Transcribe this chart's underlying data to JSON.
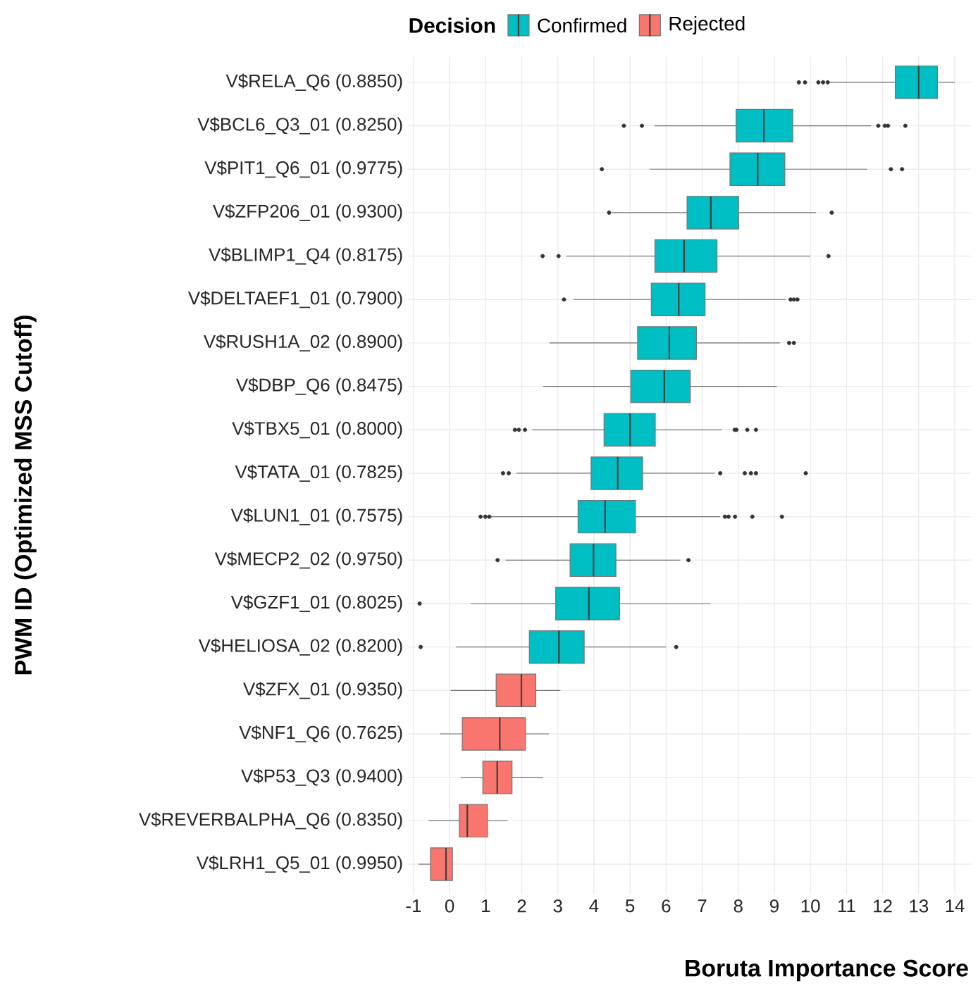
{
  "chart_data": {
    "type": "box",
    "orientation": "horizontal",
    "xlabel": "Boruta Importance Score",
    "ylabel": "PWM ID (Optimized MSS Cutoff)",
    "legend_title": "Decision",
    "legend": "top",
    "grid": true,
    "marker": "circle",
    "xlim": [
      -1.15,
      14.45
    ],
    "xticks": [
      -1,
      0,
      1,
      2,
      3,
      4,
      5,
      6,
      7,
      8,
      9,
      10,
      11,
      12,
      13,
      14
    ],
    "categories": [
      "V$RELA_Q6 (0.8850)",
      "V$BCL6_Q3_01 (0.8250)",
      "V$PIT1_Q6_01 (0.9775)",
      "V$ZFP206_01 (0.9300)",
      "V$BLIMP1_Q4 (0.8175)",
      "V$DELTAEF1_01 (0.7900)",
      "V$RUSH1A_02 (0.8900)",
      "V$DBP_Q6 (0.8475)",
      "V$TBX5_01 (0.8000)",
      "V$TATA_01 (0.7825)",
      "V$LUN1_01 (0.7575)",
      "V$MECP2_02 (0.9750)",
      "V$GZF1_01 (0.8025)",
      "V$HELIOSA_02 (0.8200)",
      "V$ZFX_01 (0.9350)",
      "V$NF1_Q6 (0.7625)",
      "V$P53_Q3 (0.9400)",
      "V$REVERBALPHA_Q6 (0.8350)",
      "V$LRH1_Q5_01 (0.9950)"
    ],
    "series": [
      {
        "name": "Confirmed",
        "color": "#00bfc4",
        "boxes": [
          {
            "low": 10.54,
            "q1": 12.35,
            "median": 13.0,
            "q3": 13.52,
            "high": 14.0,
            "outliers": [
              9.68,
              9.85,
              10.22,
              10.35,
              10.48
            ]
          },
          {
            "low": 5.68,
            "q1": 7.94,
            "median": 8.71,
            "q3": 9.51,
            "high": 11.68,
            "outliers": [
              4.83,
              5.33,
              11.88,
              12.06,
              12.15,
              12.63
            ]
          },
          {
            "low": 5.54,
            "q1": 7.77,
            "median": 8.54,
            "q3": 9.29,
            "high": 11.57,
            "outliers": [
              4.22,
              12.23,
              12.54
            ]
          },
          {
            "low": 4.5,
            "q1": 6.58,
            "median": 7.24,
            "q3": 8.01,
            "high": 10.15,
            "outliers": [
              4.42,
              10.59
            ]
          },
          {
            "low": 3.23,
            "q1": 5.69,
            "median": 6.5,
            "q3": 7.41,
            "high": 9.99,
            "outliers": [
              2.58,
              3.02,
              10.5
            ]
          },
          {
            "low": 3.43,
            "q1": 5.59,
            "median": 6.35,
            "q3": 7.08,
            "high": 9.32,
            "outliers": [
              3.17,
              9.45,
              9.54,
              9.64
            ]
          },
          {
            "low": 2.77,
            "q1": 5.21,
            "median": 6.09,
            "q3": 6.84,
            "high": 9.16,
            "outliers": [
              9.41,
              9.54
            ]
          },
          {
            "low": 2.59,
            "q1": 5.02,
            "median": 5.95,
            "q3": 6.67,
            "high": 9.07
          },
          {
            "low": 2.28,
            "q1": 4.28,
            "median": 5.0,
            "q3": 5.7,
            "high": 7.55,
            "outliers": [
              1.81,
              1.92,
              2.09,
              7.9,
              7.95,
              8.25,
              8.49
            ]
          },
          {
            "low": 1.85,
            "q1": 3.92,
            "median": 4.66,
            "q3": 5.35,
            "high": 7.35,
            "outliers": [
              1.48,
              1.64,
              7.5,
              8.18,
              8.35,
              8.49,
              9.87
            ]
          },
          {
            "low": 1.15,
            "q1": 3.56,
            "median": 4.31,
            "q3": 5.15,
            "high": 7.5,
            "outliers": [
              0.86,
              0.99,
              1.1,
              7.63,
              7.73,
              7.91,
              8.39,
              9.21
            ]
          },
          {
            "low": 1.55,
            "q1": 3.34,
            "median": 3.99,
            "q3": 4.61,
            "high": 6.39,
            "outliers": [
              1.33,
              6.62
            ]
          },
          {
            "low": 0.59,
            "q1": 2.94,
            "median": 3.86,
            "q3": 4.71,
            "high": 7.23,
            "outliers": [
              -0.83
            ]
          },
          {
            "low": 0.18,
            "q1": 2.21,
            "median": 3.03,
            "q3": 3.73,
            "high": 6.0,
            "outliers": [
              -0.8,
              6.28
            ]
          },
          null,
          null,
          null,
          null,
          null
        ]
      },
      {
        "name": "Rejected",
        "color": "#f8766d",
        "boxes": [
          null,
          null,
          null,
          null,
          null,
          null,
          null,
          null,
          null,
          null,
          null,
          null,
          null,
          null,
          {
            "low": 0.03,
            "q1": 1.29,
            "median": 1.99,
            "q3": 2.39,
            "high": 3.07
          },
          {
            "low": -0.27,
            "q1": 0.35,
            "median": 1.39,
            "q3": 2.1,
            "high": 2.75
          },
          {
            "low": 0.31,
            "q1": 0.92,
            "median": 1.32,
            "q3": 1.73,
            "high": 2.59
          },
          {
            "low": -0.58,
            "q1": 0.27,
            "median": 0.49,
            "q3": 1.05,
            "high": 1.61
          },
          {
            "low": -0.86,
            "q1": -0.53,
            "median": -0.1,
            "q3": 0.08,
            "high": 0.08
          }
        ]
      }
    ]
  }
}
